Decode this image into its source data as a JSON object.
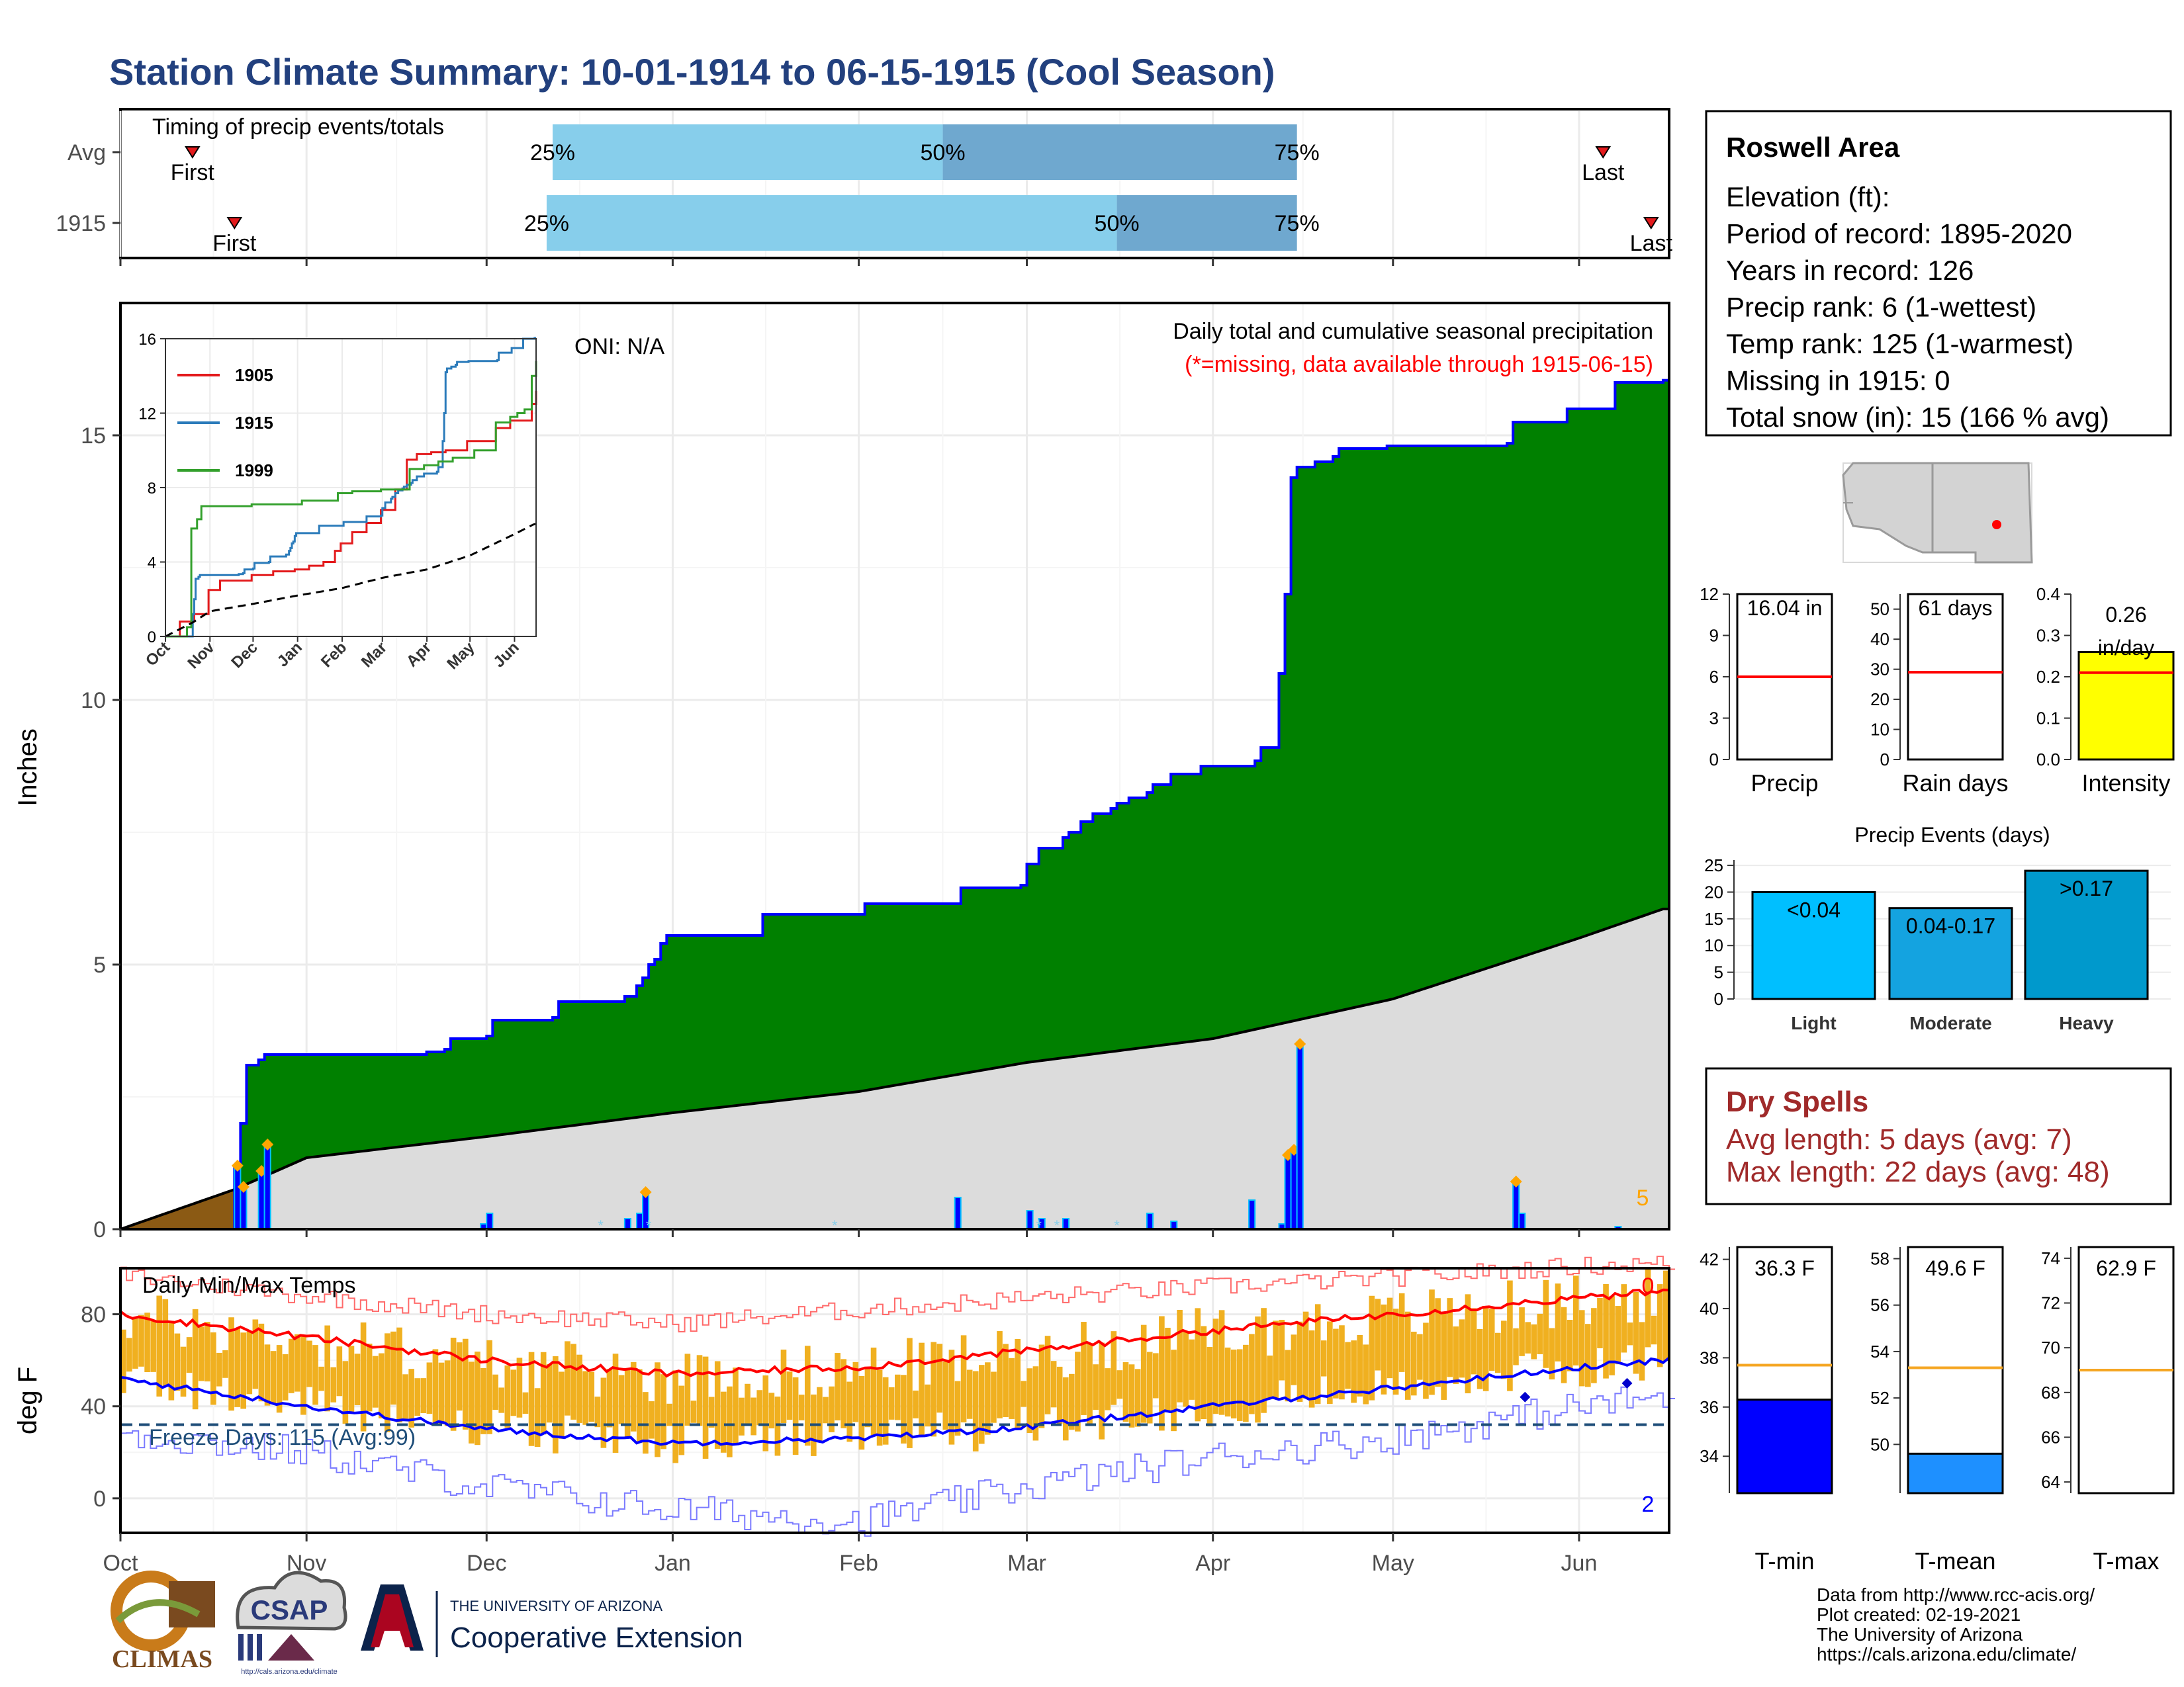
{
  "title": "Station Climate Summary: 10-01-1914 to 06-15-1915 (Cool Season)",
  "timing": {
    "panel_title": "Timing of precip events/totals",
    "rows": [
      {
        "label": "Avg",
        "first_label": "First",
        "last_label": "Last",
        "first_date": "1914-10-13",
        "last_date": "1915-06-05",
        "p25": "1914-12-12",
        "p50": "1915-02-15",
        "p75": "1915-04-15",
        "p25_label": "25%",
        "p50_label": "50%",
        "p75_label": "75%"
      },
      {
        "label": "1915",
        "first_label": "First",
        "last_label": "Last",
        "first_date": "1914-10-20",
        "last_date": "1915-06-13",
        "p25": "1914-12-11",
        "p50": "1915-03-16",
        "p75": "1915-04-15",
        "p25_label": "25%",
        "p50_label": "50%",
        "p75_label": "75%"
      }
    ]
  },
  "precip": {
    "ylabel": "Inches",
    "oni": "ONI: N/A",
    "title": "Daily total and cumulative seasonal precipitation",
    "missing_note": "(*=missing, data available through 1915-06-15)",
    "corner_value": "5",
    "y_ticks": [
      "0",
      "5",
      "10",
      "15"
    ],
    "x_ticks": [
      "Oct",
      "Nov",
      "Dec",
      "Jan",
      "Feb",
      "Mar",
      "Apr",
      "May",
      "Jun"
    ]
  },
  "inset": {
    "legend": [
      {
        "name": "1905",
        "color": "#e31a1c"
      },
      {
        "name": "1915",
        "color": "#2b7bba"
      },
      {
        "name": "1999",
        "color": "#33a02c"
      }
    ],
    "y_ticks": [
      "0",
      "4",
      "8",
      "12",
      "16"
    ],
    "x_ticks": [
      "Oct",
      "Nov",
      "Dec",
      "Jan",
      "Feb",
      "Mar",
      "Apr",
      "May",
      "Jun"
    ]
  },
  "temps": {
    "ylabel": "deg F",
    "title": "Daily Min/Max Temps",
    "freeze_label": "Freeze Days: 115 (Avg:99)",
    "top_count": "0",
    "bottom_count": "2",
    "y_ticks": [
      "0",
      "40",
      "80"
    ]
  },
  "info": {
    "station": "Roswell Area",
    "lines": [
      "Elevation (ft):",
      "Period of record: 1895-2020",
      "Years in record: 126",
      "Precip rank: 6 (1-wettest)",
      "Temp rank: 125 (1-warmest)",
      "Missing in 1915: 0",
      "Total snow (in): 15 (166 % avg)"
    ]
  },
  "mini_bars": [
    {
      "label": "Precip",
      "value_label": "16.04 in",
      "value": 16.04,
      "avg": 6.0,
      "ymax": 12,
      "ticks": [
        "0",
        "3",
        "6",
        "9",
        "12"
      ],
      "fill": "#ffffff"
    },
    {
      "label": "Rain days",
      "value_label": "61 days",
      "value": 61,
      "avg": 29,
      "ymax": 55,
      "ticks": [
        "0",
        "10",
        "20",
        "30",
        "40",
        "50"
      ],
      "fill": "#ffffff"
    },
    {
      "label": "Intensity",
      "value_label": "0.26 in/day",
      "value_line1": "0.26",
      "value_line2": "in/day",
      "value": 0.26,
      "avg": 0.21,
      "ymax": 0.4,
      "ticks": [
        "0.0",
        "0.1",
        "0.2",
        "0.3",
        "0.4"
      ],
      "fill": "#ffff00"
    }
  ],
  "events": {
    "title": "Precip Events (days)",
    "ticks": [
      "0",
      "5",
      "10",
      "15",
      "20",
      "25"
    ],
    "bars": [
      {
        "category": "Light",
        "label": "<0.04",
        "value": 20,
        "color": "#00bfff"
      },
      {
        "category": "Moderate",
        "label": "0.04-0.17",
        "value": 17,
        "color": "#14a3e0"
      },
      {
        "category": "Heavy",
        "label": ">0.17",
        "value": 24,
        "color": "#0099cc"
      }
    ]
  },
  "dry_spells": {
    "title": "Dry Spells",
    "avg_line": "Avg length: 5 days (avg: 7)",
    "max_line": "Max length: 22 days (avg: 48)"
  },
  "temp_bars": [
    {
      "label": "T-min",
      "value_label": "36.3 F",
      "value": 36.3,
      "avg": 37.7,
      "ymin": 32.5,
      "ymax": 42.5,
      "ticks": [
        "34",
        "36",
        "38",
        "40",
        "42"
      ],
      "fill": "#0000ff"
    },
    {
      "label": "T-mean",
      "value_label": "49.6 F",
      "value": 49.6,
      "avg": 53.3,
      "ymin": 47.9,
      "ymax": 58.5,
      "ticks": [
        "50",
        "52",
        "54",
        "56",
        "58"
      ],
      "fill": "#1e90ff"
    },
    {
      "label": "T-max",
      "value_label": "62.9 F",
      "value": 62.9,
      "avg": 69.0,
      "ymin": 63.5,
      "ymax": 74.5,
      "ticks": [
        "64",
        "66",
        "68",
        "70",
        "72",
        "74"
      ],
      "fill": "#1e90ff"
    }
  ],
  "logos": {
    "climas": "CLIMAS",
    "csap": "CSAP",
    "csap_url": "http://cals.arizona.edu/climate",
    "ua_top": "THE UNIVERSITY OF ARIZONA",
    "ua_bottom": "Cooperative Extension"
  },
  "footer": [
    "Data from http://www.rcc-acis.org/",
    "Plot created: 02-19-2021",
    "The University of Arizona",
    "https://cals.arizona.edu/climate/"
  ],
  "chart_data": [
    {
      "type": "area",
      "title": "Daily total and cumulative seasonal precipitation",
      "ylabel": "Inches",
      "ylim": [
        0,
        17.5
      ],
      "x_ticks": [
        "Oct",
        "Nov",
        "Dec",
        "Jan",
        "Feb",
        "Mar",
        "Apr",
        "May",
        "Jun"
      ],
      "series": [
        {
          "name": "1915",
          "x": [
            "1914-10-01",
            "1914-10-20",
            "1914-10-21",
            "1914-10-22",
            "1914-10-24",
            "1914-10-25",
            "1914-11-20",
            "1914-11-21",
            "1914-11-24",
            "1914-11-25",
            "1914-12-01",
            "1914-12-02",
            "1914-12-12",
            "1914-12-13",
            "1914-12-24",
            "1914-12-26",
            "1914-12-27",
            "1914-12-28",
            "1914-12-29",
            "1914-12-30",
            "1914-12-31",
            "1915-01-15",
            "1915-01-16",
            "1915-02-01",
            "1915-02-02",
            "1915-02-17",
            "1915-02-18",
            "1915-02-28",
            "1915-03-01",
            "1915-03-03",
            "1915-03-07",
            "1915-03-08",
            "1915-03-10",
            "1915-03-12",
            "1915-03-15",
            "1915-03-16",
            "1915-03-18",
            "1915-03-21",
            "1915-03-22",
            "1915-03-24",
            "1915-03-25",
            "1915-03-29",
            "1915-03-30",
            "1915-04-07",
            "1915-04-08",
            "1915-04-09",
            "1915-04-12",
            "1915-04-13",
            "1915-04-14",
            "1915-04-15",
            "1915-04-18",
            "1915-04-21",
            "1915-04-22",
            "1915-04-30",
            "1915-05-01",
            "1915-05-20",
            "1915-05-21",
            "1915-05-29",
            "1915-05-30",
            "1915-06-06",
            "1915-06-07",
            "1915-06-15"
          ],
          "values": [
            0,
            1.2,
            2.0,
            3.1,
            3.2,
            3.3,
            3.3,
            3.35,
            3.4,
            3.6,
            3.65,
            3.95,
            4.0,
            4.3,
            4.4,
            4.6,
            4.75,
            5.0,
            5.1,
            5.4,
            5.55,
            5.55,
            5.95,
            5.95,
            6.15,
            6.15,
            6.45,
            6.5,
            6.9,
            7.2,
            7.4,
            7.5,
            7.7,
            7.85,
            7.95,
            8.05,
            8.15,
            8.25,
            8.4,
            8.4,
            8.6,
            8.6,
            8.75,
            8.75,
            8.85,
            9.1,
            10.5,
            12.0,
            14.2,
            14.4,
            14.5,
            14.6,
            14.75,
            14.8,
            14.8,
            14.85,
            15.25,
            15.25,
            15.5,
            15.5,
            16.0,
            16.04
          ]
        },
        {
          "name": "Average",
          "x": [
            "1914-10-01",
            "1914-10-20",
            "1914-11-01",
            "1914-12-01",
            "1915-01-01",
            "1915-02-01",
            "1915-03-01",
            "1915-04-01",
            "1915-05-01",
            "1915-06-01",
            "1915-06-15"
          ],
          "values": [
            0,
            0.75,
            1.35,
            1.75,
            2.2,
            2.6,
            3.15,
            3.6,
            4.35,
            5.5,
            6.05
          ]
        }
      ]
    },
    {
      "type": "bar",
      "title": "Daily precipitation",
      "x": [
        "1914-10-20",
        "1914-10-21",
        "1914-10-24",
        "1914-10-25",
        "1914-11-30",
        "1914-12-01",
        "1914-12-24",
        "1914-12-26",
        "1914-12-27",
        "1915-02-17",
        "1915-03-01",
        "1915-03-03",
        "1915-03-07",
        "1915-03-21",
        "1915-03-25",
        "1915-04-07",
        "1915-04-12",
        "1915-04-13",
        "1915-04-14",
        "1915-04-15",
        "1915-05-21",
        "1915-05-22",
        "1915-06-07"
      ],
      "values": [
        1.2,
        0.8,
        1.1,
        1.6,
        0.1,
        0.3,
        0.2,
        0.3,
        0.7,
        0.6,
        0.35,
        0.2,
        0.2,
        0.3,
        0.15,
        0.55,
        0.1,
        1.4,
        1.5,
        3.5,
        0.9,
        0.3,
        0.05
      ]
    },
    {
      "type": "line",
      "title": "Daily Min/Max Temps",
      "ylabel": "deg F",
      "ylim": [
        -15,
        100
      ],
      "x": [
        "1914-10-01",
        "1914-11-01",
        "1914-12-01",
        "1915-01-01",
        "1915-02-01",
        "1915-03-01",
        "1915-04-01",
        "1915-05-01",
        "1915-06-01",
        "1915-06-15"
      ],
      "series": [
        {
          "name": "Avg Max",
          "values": [
            80,
            70,
            60,
            54,
            57,
            64,
            73,
            80,
            87,
            90
          ]
        },
        {
          "name": "Avg Min",
          "values": [
            52,
            40,
            30,
            24,
            26,
            31,
            40,
            48,
            57,
            60
          ]
        },
        {
          "name": "Record High",
          "values": [
            97,
            88,
            80,
            76,
            82,
            87,
            92,
            96,
            101,
            102
          ]
        },
        {
          "name": "Record Low",
          "values": [
            28,
            20,
            5,
            -5,
            -10,
            5,
            18,
            26,
            40,
            44
          ]
        }
      ],
      "freeze_line": 32
    },
    {
      "type": "bar",
      "title": "Precip Events (days)",
      "categories": [
        "Light",
        "Moderate",
        "Heavy"
      ],
      "values": [
        20,
        17,
        24
      ]
    },
    {
      "type": "bar",
      "title": "Seasonal summary",
      "categories": [
        "Precip",
        "Rain days",
        "Intensity",
        "T-min",
        "T-mean",
        "T-max"
      ],
      "values": [
        16.04,
        61,
        0.26,
        36.3,
        49.6,
        62.9
      ],
      "averages": [
        6.0,
        29,
        0.21,
        37.7,
        53.3,
        69.0
      ]
    }
  ]
}
